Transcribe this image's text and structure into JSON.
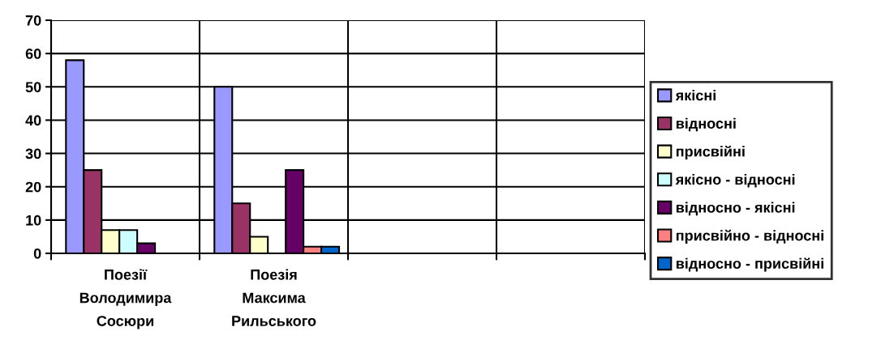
{
  "chart_data": {
    "type": "bar",
    "categories": [
      "Поезії Володимира Сосюри",
      "Поезія Максима Рильського",
      null,
      null
    ],
    "series": [
      {
        "name": "якісні",
        "color": "#9999ff",
        "values": [
          58,
          50,
          null,
          null
        ]
      },
      {
        "name": "відносні",
        "color": "#993366",
        "values": [
          25,
          15,
          null,
          null
        ]
      },
      {
        "name": "присвійні",
        "color": "#ffffcc",
        "values": [
          7,
          5,
          null,
          null
        ]
      },
      {
        "name": "якісно - відносні",
        "color": "#ccffff",
        "values": [
          7,
          null,
          null,
          null
        ]
      },
      {
        "name": "відносно - якісні",
        "color": "#660066",
        "values": [
          3,
          25,
          null,
          null
        ]
      },
      {
        "name": "присвійно - відносні",
        "color": "#ff8080",
        "values": [
          null,
          2,
          null,
          null
        ]
      },
      {
        "name": "відносно - присвійні",
        "color": "#0066cc",
        "values": [
          null,
          2,
          null,
          null
        ]
      }
    ],
    "ylim": [
      0,
      70
    ],
    "yticks": [
      0,
      10,
      20,
      30,
      40,
      50,
      60,
      70
    ],
    "grid": true,
    "legend": "right"
  }
}
